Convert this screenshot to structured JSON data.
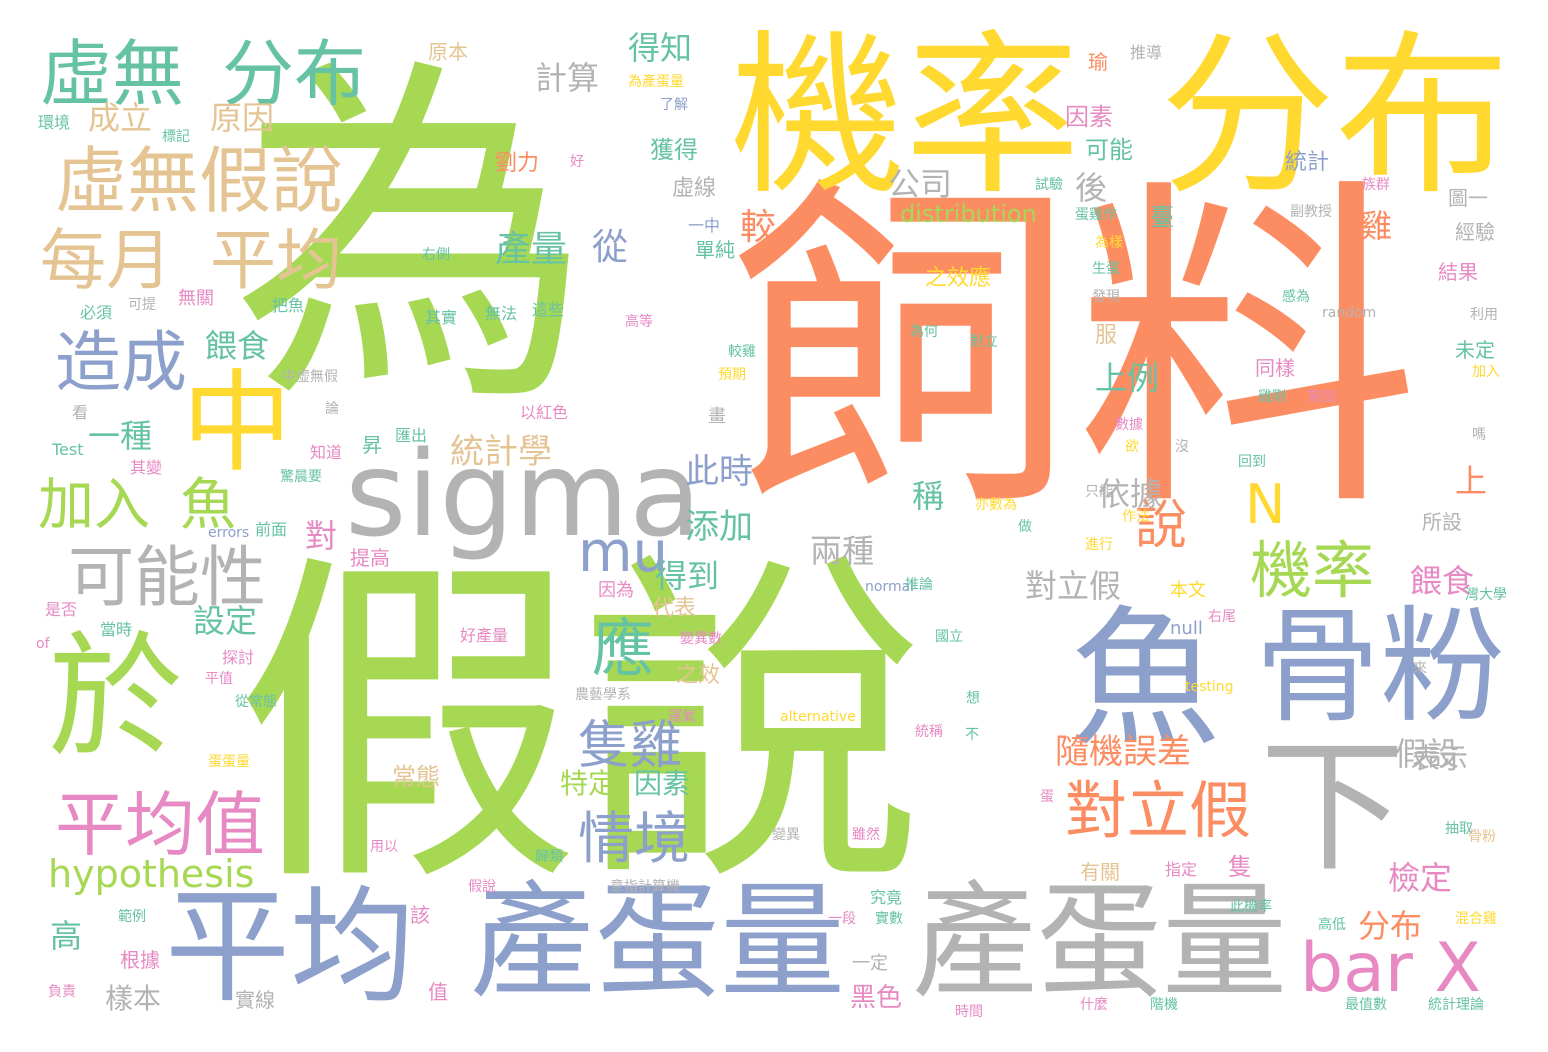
{
  "colors": {
    "green": "#a6d854",
    "orange": "#fc8d62",
    "yellow": "#ffd92f",
    "gray": "#b3b3b3",
    "blue": "#8da0cb",
    "pink": "#e78ac3",
    "teal": "#66c2a5",
    "tan": "#e5c494"
  },
  "words": [
    {
      "text": "為",
      "color": "green"
    },
    {
      "text": "飼料",
      "color": "orange"
    },
    {
      "text": "假說",
      "color": "green"
    },
    {
      "text": "機率",
      "color": "yellow"
    },
    {
      "text": "分布",
      "color": "yellow"
    },
    {
      "text": "sigma",
      "color": "gray"
    },
    {
      "text": "魚",
      "color": "blue"
    },
    {
      "text": "骨粉",
      "color": "blue"
    },
    {
      "text": "產蛋量",
      "color": "blue"
    },
    {
      "text": "產蛋量",
      "color": "gray"
    },
    {
      "text": "平均",
      "color": "blue"
    },
    {
      "text": "下",
      "color": "gray"
    },
    {
      "text": "於",
      "color": "green"
    },
    {
      "text": "中",
      "color": "yellow"
    },
    {
      "text": "虛無",
      "color": "teal"
    },
    {
      "text": "分布",
      "color": "teal"
    },
    {
      "text": "虛無假說",
      "color": "tan"
    },
    {
      "text": "每月",
      "color": "tan"
    },
    {
      "text": "平均",
      "color": "tan"
    },
    {
      "text": "造成",
      "color": "blue"
    },
    {
      "text": "可能性",
      "color": "gray"
    },
    {
      "text": "加入",
      "color": "green"
    },
    {
      "text": "魚",
      "color": "green"
    },
    {
      "text": "平均值",
      "color": "pink"
    },
    {
      "text": "hypothesis",
      "color": "green"
    },
    {
      "text": "bar X",
      "color": "pink"
    },
    {
      "text": "對立假",
      "color": "orange"
    },
    {
      "text": "機率",
      "color": "green"
    },
    {
      "text": "mu",
      "color": "blue"
    },
    {
      "text": "情境",
      "color": "blue"
    },
    {
      "text": "應",
      "color": "teal"
    },
    {
      "text": "隻雞",
      "color": "blue"
    },
    {
      "text": "N",
      "color": "yellow"
    },
    {
      "text": "說",
      "color": "orange"
    },
    {
      "text": "計算",
      "color": "gray"
    },
    {
      "text": "得知",
      "color": "teal"
    },
    {
      "text": "成立",
      "color": "tan"
    },
    {
      "text": "原因",
      "color": "tan"
    },
    {
      "text": "餵食",
      "color": "teal"
    },
    {
      "text": "一種",
      "color": "teal"
    },
    {
      "text": "統計學",
      "color": "tan"
    },
    {
      "text": "產量",
      "color": "teal"
    },
    {
      "text": "從",
      "color": "blue"
    },
    {
      "text": "較",
      "color": "orange"
    },
    {
      "text": "此時",
      "color": "blue"
    },
    {
      "text": "添加",
      "color": "teal"
    },
    {
      "text": "得到",
      "color": "teal"
    },
    {
      "text": "設定",
      "color": "teal"
    },
    {
      "text": "公司",
      "color": "gray"
    },
    {
      "text": "distribution",
      "color": "green"
    },
    {
      "text": "後",
      "color": "gray"
    },
    {
      "text": "雞",
      "color": "orange"
    },
    {
      "text": "上例",
      "color": "teal"
    },
    {
      "text": "依據",
      "color": "gray"
    },
    {
      "text": "兩種",
      "color": "gray"
    },
    {
      "text": "對立假",
      "color": "gray"
    },
    {
      "text": "稱",
      "color": "teal"
    },
    {
      "text": "對",
      "color": "pink"
    },
    {
      "text": "隨機誤差",
      "color": "orange"
    },
    {
      "text": "假設",
      "color": "gray"
    },
    {
      "text": "檢定",
      "color": "pink"
    },
    {
      "text": "分布",
      "color": "orange"
    },
    {
      "text": "表示",
      "color": "gray"
    },
    {
      "text": "餵食",
      "color": "pink"
    },
    {
      "text": "上",
      "color": "orange"
    },
    {
      "text": "常態",
      "color": "tan"
    },
    {
      "text": "特定",
      "color": "green"
    },
    {
      "text": "因素",
      "color": "teal"
    },
    {
      "text": "高",
      "color": "teal"
    },
    {
      "text": "樣本",
      "color": "gray"
    },
    {
      "text": "黑色",
      "color": "pink"
    },
    {
      "text": "獲得",
      "color": "teal"
    },
    {
      "text": "劉力",
      "color": "orange"
    },
    {
      "text": "虛線",
      "color": "gray"
    },
    {
      "text": "因素",
      "color": "pink"
    },
    {
      "text": "可能",
      "color": "teal"
    },
    {
      "text": "統計",
      "color": "blue"
    },
    {
      "text": "臺",
      "color": "teal"
    },
    {
      "text": "之效應",
      "color": "yellow"
    },
    {
      "text": "原本",
      "color": "tan"
    },
    {
      "text": "瑜",
      "color": "orange"
    },
    {
      "text": "推導",
      "color": "gray"
    },
    {
      "text": "random",
      "color": "gray"
    },
    {
      "text": "null",
      "color": "blue"
    },
    {
      "text": "本文",
      "color": "yellow"
    },
    {
      "text": "testing",
      "color": "yellow"
    },
    {
      "text": "alternative",
      "color": "yellow"
    },
    {
      "text": "Test",
      "color": "teal"
    },
    {
      "text": "errors",
      "color": "blue"
    },
    {
      "text": "of",
      "color": "pink"
    },
    {
      "text": "normal",
      "color": "blue"
    },
    {
      "text": "圖一",
      "color": "gray"
    },
    {
      "text": "經驗",
      "color": "gray"
    },
    {
      "text": "結果",
      "color": "pink"
    },
    {
      "text": "未定",
      "color": "teal"
    },
    {
      "text": "所設",
      "color": "gray"
    },
    {
      "text": "同樣",
      "color": "pink"
    },
    {
      "text": "服",
      "color": "tan"
    },
    {
      "text": "代表",
      "color": "tan"
    },
    {
      "text": "之效",
      "color": "tan"
    },
    {
      "text": "因為",
      "color": "pink"
    },
    {
      "text": "好產量",
      "color": "pink"
    },
    {
      "text": "有關",
      "color": "tan"
    },
    {
      "text": "指定",
      "color": "pink"
    },
    {
      "text": "隻",
      "color": "pink"
    },
    {
      "text": "該",
      "color": "pink"
    },
    {
      "text": "值",
      "color": "pink"
    },
    {
      "text": "根據",
      "color": "pink"
    },
    {
      "text": "實線",
      "color": "gray"
    },
    {
      "text": "一定",
      "color": "gray"
    },
    {
      "text": "無關",
      "color": "pink"
    },
    {
      "text": "把魚",
      "color": "teal"
    },
    {
      "text": "必須",
      "color": "teal"
    },
    {
      "text": "可提",
      "color": "gray"
    },
    {
      "text": "其實",
      "color": "teal"
    },
    {
      "text": "無法",
      "color": "teal"
    },
    {
      "text": "這些",
      "color": "teal"
    },
    {
      "text": "高等",
      "color": "pink"
    },
    {
      "text": "為何",
      "color": "teal"
    },
    {
      "text": "對立",
      "color": "teal"
    },
    {
      "text": "單純",
      "color": "teal"
    },
    {
      "text": "一中",
      "color": "blue"
    },
    {
      "text": "了解",
      "color": "blue"
    },
    {
      "text": "為產蛋量",
      "color": "yellow"
    },
    {
      "text": "環境",
      "color": "teal"
    },
    {
      "text": "標記",
      "color": "teal"
    },
    {
      "text": "好",
      "color": "pink"
    },
    {
      "text": "右側",
      "color": "teal"
    },
    {
      "text": "中虛無假",
      "color": "gray"
    },
    {
      "text": "較雞",
      "color": "teal"
    },
    {
      "text": "預期",
      "color": "yellow"
    },
    {
      "text": "以紅色",
      "color": "pink"
    },
    {
      "text": "畫",
      "color": "gray"
    },
    {
      "text": "匯出",
      "color": "teal"
    },
    {
      "text": "昇",
      "color": "teal"
    },
    {
      "text": "知道",
      "color": "pink"
    },
    {
      "text": "其變",
      "color": "pink"
    },
    {
      "text": "看",
      "color": "gray"
    },
    {
      "text": "論",
      "color": "gray"
    },
    {
      "text": "前面",
      "color": "teal"
    },
    {
      "text": "提高",
      "color": "pink"
    },
    {
      "text": "是否",
      "color": "pink"
    },
    {
      "text": "當時",
      "color": "teal"
    },
    {
      "text": "探討",
      "color": "pink"
    },
    {
      "text": "平值",
      "color": "pink"
    },
    {
      "text": "從常態",
      "color": "teal"
    },
    {
      "text": "蛋蛋量",
      "color": "yellow"
    },
    {
      "text": "用以",
      "color": "pink"
    },
    {
      "text": "範例",
      "color": "teal"
    },
    {
      "text": "假說",
      "color": "pink"
    },
    {
      "text": "負責",
      "color": "pink"
    },
    {
      "text": "時間",
      "color": "pink"
    },
    {
      "text": "什麼",
      "color": "pink"
    },
    {
      "text": "階機",
      "color": "teal"
    },
    {
      "text": "最值數",
      "color": "teal"
    },
    {
      "text": "統計理論",
      "color": "teal"
    },
    {
      "text": "高低",
      "color": "teal"
    },
    {
      "text": "混合雞",
      "color": "yellow"
    },
    {
      "text": "此機率",
      "color": "teal"
    },
    {
      "text": "究竟",
      "color": "teal"
    },
    {
      "text": "實數",
      "color": "teal"
    },
    {
      "text": "一段",
      "color": "pink"
    },
    {
      "text": "運氣",
      "color": "pink"
    },
    {
      "text": "農藝學系",
      "color": "gray"
    },
    {
      "text": "歸類",
      "color": "teal"
    },
    {
      "text": "意指計算機",
      "color": "gray"
    },
    {
      "text": "推論",
      "color": "teal"
    },
    {
      "text": "國立",
      "color": "teal"
    },
    {
      "text": "統稱",
      "color": "pink"
    },
    {
      "text": "不",
      "color": "teal"
    },
    {
      "text": "變異",
      "color": "gray"
    },
    {
      "text": "雖然",
      "color": "pink"
    },
    {
      "text": "亦數為",
      "color": "yellow"
    },
    {
      "text": "只能",
      "color": "gray"
    },
    {
      "text": "回到",
      "color": "teal"
    },
    {
      "text": "作法",
      "color": "yellow"
    },
    {
      "text": "進行",
      "color": "yellow"
    },
    {
      "text": "灣大學",
      "color": "teal"
    },
    {
      "text": "右尾",
      "color": "pink"
    },
    {
      "text": "抽取",
      "color": "teal"
    },
    {
      "text": "骨粉",
      "color": "tan"
    },
    {
      "text": "想",
      "color": "teal"
    },
    {
      "text": "來",
      "color": "gray"
    },
    {
      "text": "變異數",
      "color": "pink"
    },
    {
      "text": "數據",
      "color": "pink"
    },
    {
      "text": "欲",
      "color": "yellow"
    },
    {
      "text": "發現",
      "color": "gray"
    },
    {
      "text": "生蛋",
      "color": "teal"
    },
    {
      "text": "為樣",
      "color": "yellow"
    },
    {
      "text": "蛋雞作",
      "color": "teal"
    },
    {
      "text": "試驗",
      "color": "teal"
    },
    {
      "text": "族群",
      "color": "pink"
    },
    {
      "text": "副教授",
      "color": "gray"
    },
    {
      "text": "雞剛",
      "color": "teal"
    },
    {
      "text": "施加",
      "color": "pink"
    },
    {
      "text": "加入",
      "color": "yellow"
    },
    {
      "text": "感為",
      "color": "teal"
    },
    {
      "text": "利用",
      "color": "gray"
    },
    {
      "text": "嗎",
      "color": "gray"
    },
    {
      "text": "沒",
      "color": "gray"
    },
    {
      "text": "做",
      "color": "teal"
    },
    {
      "text": "驚晨要",
      "color": "teal"
    },
    {
      "text": "蛋",
      "color": "pink"
    }
  ]
}
